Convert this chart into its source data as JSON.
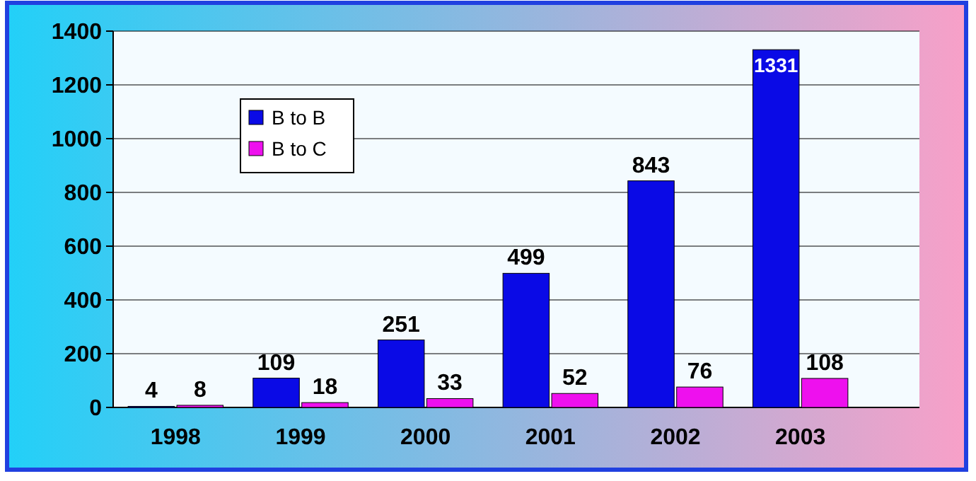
{
  "chart_data": {
    "type": "bar",
    "categories": [
      "1998",
      "1999",
      "2000",
      "2001",
      "2002",
      "2003"
    ],
    "series": [
      {
        "name": "B to B",
        "color": "#0a0ae6",
        "values": [
          4,
          109,
          251,
          499,
          843,
          1331
        ]
      },
      {
        "name": "B to C",
        "color": "#ee10ee",
        "values": [
          8,
          18,
          33,
          52,
          76,
          108
        ]
      }
    ],
    "ylim": [
      0,
      1400
    ],
    "yticks": [
      0,
      200,
      400,
      600,
      800,
      1000,
      1200,
      1400
    ],
    "grid": "y",
    "legend": "top left",
    "data_labels": true
  }
}
